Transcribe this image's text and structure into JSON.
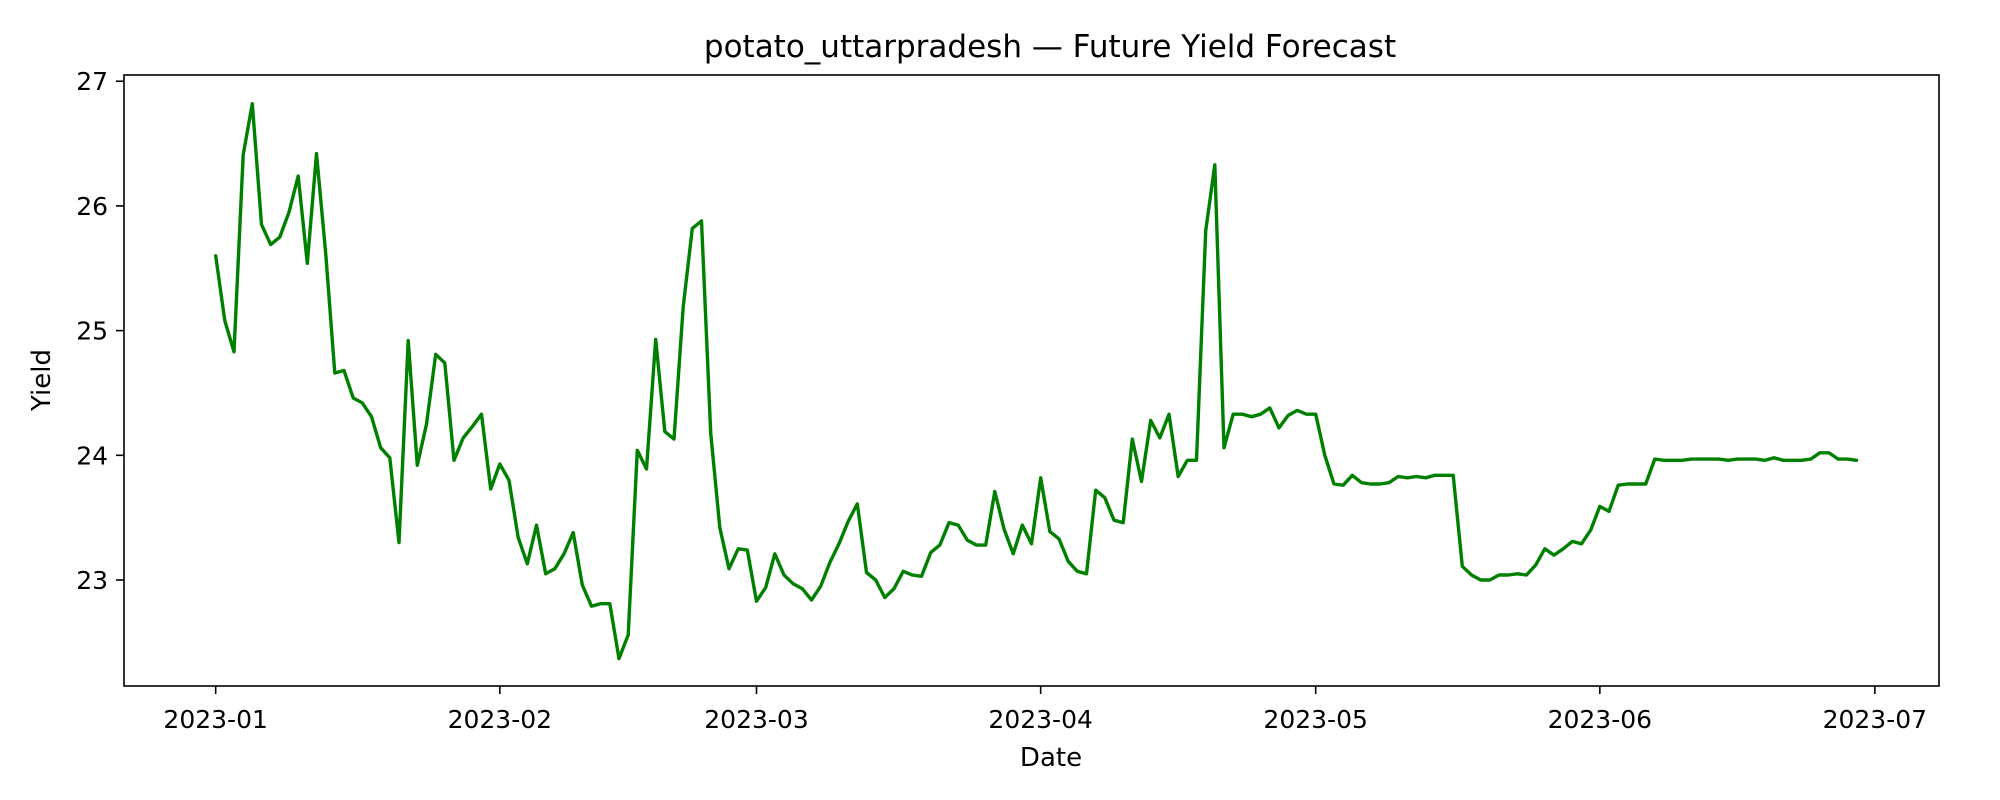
{
  "chart_data": {
    "type": "line",
    "title": "potato_uttarpradesh — Future Yield Forecast",
    "xlabel": "Date",
    "ylabel": "Yield",
    "x_axis_type": "date",
    "xlim": [
      "2022-12-22",
      "2023-07-08"
    ],
    "ylim": [
      22.15,
      27.05
    ],
    "xticks": [
      "2023-01-01",
      "2023-02-01",
      "2023-03-01",
      "2023-04-01",
      "2023-05-01",
      "2023-06-01",
      "2023-07-01"
    ],
    "xtick_labels": [
      "2023-01",
      "2023-02",
      "2023-03",
      "2023-04",
      "2023-05",
      "2023-06",
      "2023-07"
    ],
    "yticks": [
      23,
      24,
      25,
      26,
      27
    ],
    "ytick_labels": [
      "23",
      "24",
      "25",
      "26",
      "27"
    ],
    "grid": false,
    "legend": "none",
    "colors": {
      "line": "#008000"
    },
    "series": [
      {
        "x": [
          "2023-01-01",
          "2023-01-02",
          "2023-01-03",
          "2023-01-04",
          "2023-01-05",
          "2023-01-06",
          "2023-01-07",
          "2023-01-08",
          "2023-01-09",
          "2023-01-10",
          "2023-01-11",
          "2023-01-12",
          "2023-01-13",
          "2023-01-14",
          "2023-01-15",
          "2023-01-16",
          "2023-01-17",
          "2023-01-18",
          "2023-01-19",
          "2023-01-20",
          "2023-01-21",
          "2023-01-22",
          "2023-01-23",
          "2023-01-24",
          "2023-01-25",
          "2023-01-26",
          "2023-01-27",
          "2023-01-28",
          "2023-01-29",
          "2023-01-30",
          "2023-01-31",
          "2023-02-01",
          "2023-02-02",
          "2023-02-03",
          "2023-02-04",
          "2023-02-05",
          "2023-02-06",
          "2023-02-07",
          "2023-02-08",
          "2023-02-09",
          "2023-02-10",
          "2023-02-11",
          "2023-02-12",
          "2023-02-13",
          "2023-02-14",
          "2023-02-15",
          "2023-02-16",
          "2023-02-17",
          "2023-02-18",
          "2023-02-19",
          "2023-02-20",
          "2023-02-21",
          "2023-02-22",
          "2023-02-23",
          "2023-02-24",
          "2023-02-25",
          "2023-02-26",
          "2023-02-27",
          "2023-02-28",
          "2023-03-01",
          "2023-03-02",
          "2023-03-03",
          "2023-03-04",
          "2023-03-05",
          "2023-03-06",
          "2023-03-07",
          "2023-03-08",
          "2023-03-09",
          "2023-03-10",
          "2023-03-11",
          "2023-03-12",
          "2023-03-13",
          "2023-03-14",
          "2023-03-15",
          "2023-03-16",
          "2023-03-17",
          "2023-03-18",
          "2023-03-19",
          "2023-03-20",
          "2023-03-21",
          "2023-03-22",
          "2023-03-23",
          "2023-03-24",
          "2023-03-25",
          "2023-03-26",
          "2023-03-27",
          "2023-03-28",
          "2023-03-29",
          "2023-03-30",
          "2023-03-31",
          "2023-04-01",
          "2023-04-02",
          "2023-04-03",
          "2023-04-04",
          "2023-04-05",
          "2023-04-06",
          "2023-04-07",
          "2023-04-08",
          "2023-04-09",
          "2023-04-10",
          "2023-04-11",
          "2023-04-12",
          "2023-04-13",
          "2023-04-14",
          "2023-04-15",
          "2023-04-16",
          "2023-04-17",
          "2023-04-18",
          "2023-04-19",
          "2023-04-20",
          "2023-04-21",
          "2023-04-22",
          "2023-04-23",
          "2023-04-24",
          "2023-04-25",
          "2023-04-26",
          "2023-04-27",
          "2023-04-28",
          "2023-04-29",
          "2023-04-30",
          "2023-05-01",
          "2023-05-02",
          "2023-05-03",
          "2023-05-04",
          "2023-05-05",
          "2023-05-06",
          "2023-05-07",
          "2023-05-08",
          "2023-05-09",
          "2023-05-10",
          "2023-05-11",
          "2023-05-12",
          "2023-05-13",
          "2023-05-14",
          "2023-05-15",
          "2023-05-16",
          "2023-05-17",
          "2023-05-18",
          "2023-05-19",
          "2023-05-20",
          "2023-05-21",
          "2023-05-22",
          "2023-05-23",
          "2023-05-24",
          "2023-05-25",
          "2023-05-26",
          "2023-05-27",
          "2023-05-28",
          "2023-05-29",
          "2023-05-30",
          "2023-05-31",
          "2023-06-01",
          "2023-06-02",
          "2023-06-03",
          "2023-06-04",
          "2023-06-05",
          "2023-06-06",
          "2023-06-07",
          "2023-06-08",
          "2023-06-09",
          "2023-06-10",
          "2023-06-11",
          "2023-06-12",
          "2023-06-13",
          "2023-06-14",
          "2023-06-15",
          "2023-06-16",
          "2023-06-17",
          "2023-06-18",
          "2023-06-19",
          "2023-06-20",
          "2023-06-21",
          "2023-06-22",
          "2023-06-23",
          "2023-06-24",
          "2023-06-25",
          "2023-06-26",
          "2023-06-27",
          "2023-06-28",
          "2023-06-29"
        ],
        "values": [
          25.6,
          25.08,
          24.83,
          26.41,
          26.82,
          25.85,
          25.69,
          25.75,
          25.95,
          26.24,
          25.54,
          26.42,
          25.62,
          24.66,
          24.68,
          24.46,
          24.42,
          24.31,
          24.06,
          23.98,
          23.3,
          24.92,
          23.92,
          24.25,
          24.81,
          24.74,
          23.96,
          24.14,
          24.23,
          24.33,
          23.73,
          23.93,
          23.8,
          23.34,
          23.13,
          23.44,
          23.05,
          23.09,
          23.21,
          23.38,
          22.96,
          22.79,
          22.81,
          22.81,
          22.37,
          22.56,
          24.04,
          23.89,
          24.93,
          24.19,
          24.13,
          25.19,
          25.82,
          25.88,
          24.18,
          23.42,
          23.09,
          23.25,
          23.24,
          22.83,
          22.94,
          23.21,
          23.04,
          22.97,
          22.93,
          22.84,
          22.95,
          23.14,
          23.29,
          23.47,
          23.61,
          23.06,
          23.0,
          22.86,
          22.93,
          23.07,
          23.04,
          23.03,
          23.22,
          23.28,
          23.46,
          23.44,
          23.32,
          23.28,
          23.28,
          23.71,
          23.41,
          23.21,
          23.44,
          23.29,
          23.82,
          23.39,
          23.33,
          23.15,
          23.07,
          23.05,
          23.72,
          23.66,
          23.48,
          23.46,
          24.13,
          23.79,
          24.28,
          24.14,
          24.33,
          23.83,
          23.96,
          23.96,
          25.8,
          26.33,
          24.06,
          24.33,
          24.33,
          24.31,
          24.33,
          24.38,
          24.22,
          24.32,
          24.36,
          24.33,
          24.33,
          24.0,
          23.77,
          23.76,
          23.84,
          23.78,
          23.77,
          23.77,
          23.78,
          23.83,
          23.82,
          23.83,
          23.82,
          23.84,
          23.84,
          23.84,
          23.11,
          23.04,
          23.0,
          23.0,
          23.04,
          23.04,
          23.05,
          23.04,
          23.12,
          23.25,
          23.2,
          23.25,
          23.31,
          23.29,
          23.4,
          23.59,
          23.55,
          23.76,
          23.77,
          23.77,
          23.77,
          23.97,
          23.96,
          23.96,
          23.96,
          23.97,
          23.97,
          23.97,
          23.97,
          23.96,
          23.97,
          23.97,
          23.97,
          23.96,
          23.98,
          23.96,
          23.96,
          23.96,
          23.97,
          24.02,
          24.02,
          23.97,
          23.97,
          23.96
        ]
      }
    ]
  }
}
